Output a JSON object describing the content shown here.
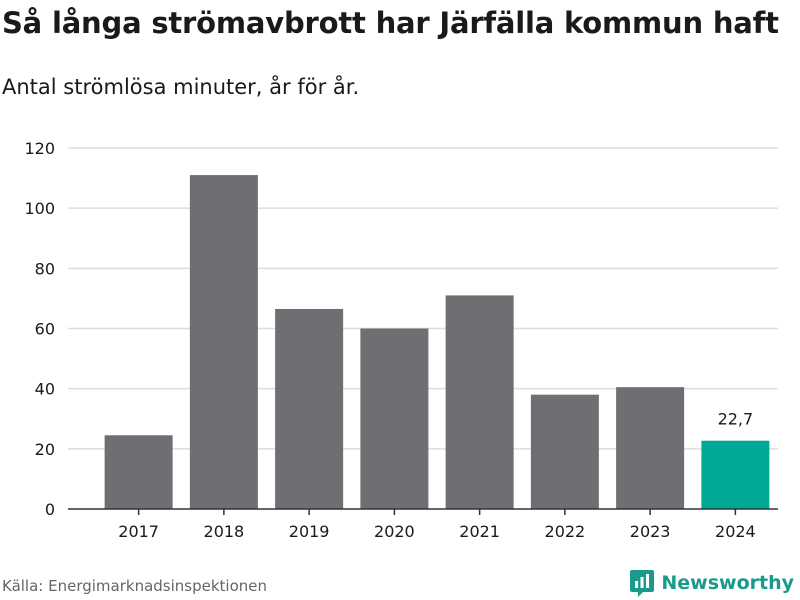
{
  "title": "Så långa strömavbrott har Järfälla kommun haft",
  "subtitle": "Antal strömlösa minuter, år för år.",
  "source": "Källa: Energimarknadsinspektionen",
  "brand": {
    "name": "Newsworthy",
    "icon": "newsworthy-logo-icon",
    "color": "#1a9a8c"
  },
  "colors": {
    "bar": "#6f6e73",
    "highlight": "#00a896",
    "grid": "#dddddd",
    "axis": "#333333",
    "text": "#1a1a1a"
  },
  "chart_data": {
    "type": "bar",
    "title": "Så långa strömavbrott har Järfälla kommun haft",
    "subtitle": "Antal strömlösa minuter, år för år.",
    "xlabel": "",
    "ylabel": "",
    "categories": [
      "2017",
      "2018",
      "2019",
      "2020",
      "2021",
      "2022",
      "2023",
      "2024"
    ],
    "values": [
      24.5,
      111,
      66.5,
      60,
      71,
      38,
      40.5,
      22.7
    ],
    "highlight_index": 7,
    "data_labels": [
      {
        "index": 7,
        "text": "22,7"
      }
    ],
    "ylim": [
      0,
      120
    ],
    "yticks": [
      0,
      20,
      40,
      60,
      80,
      100,
      120
    ],
    "grid": true,
    "legend": "none"
  }
}
